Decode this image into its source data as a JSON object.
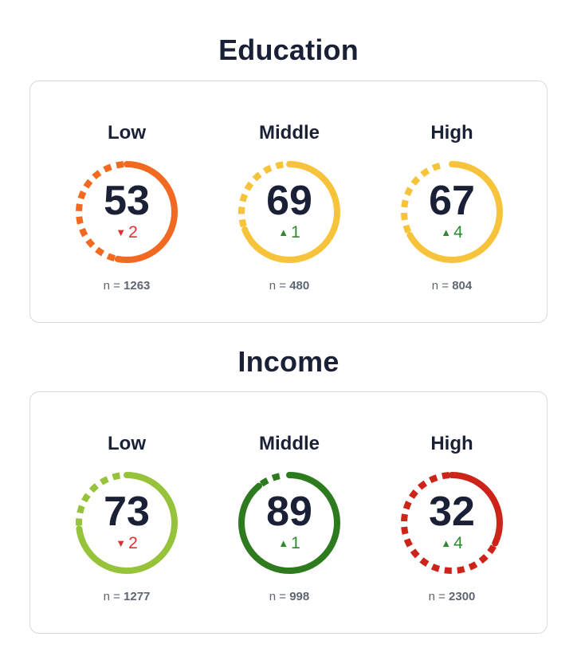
{
  "sections": [
    {
      "title": "Education",
      "gauges": [
        {
          "label": "Low",
          "value": 53,
          "delta": "2",
          "direction": "down",
          "n_prefix": "n = ",
          "n": "1263",
          "color": "#f26a21"
        },
        {
          "label": "Middle",
          "value": 69,
          "delta": "1",
          "direction": "up",
          "n_prefix": "n = ",
          "n": "480",
          "color": "#f7c33a"
        },
        {
          "label": "High",
          "value": 67,
          "delta": "4",
          "direction": "up",
          "n_prefix": "n = ",
          "n": "804",
          "color": "#f7c33a"
        }
      ]
    },
    {
      "title": "Income",
      "gauges": [
        {
          "label": "Low",
          "value": 73,
          "delta": "2",
          "direction": "down",
          "n_prefix": "n = ",
          "n": "1277",
          "color": "#97c33a"
        },
        {
          "label": "Middle",
          "value": 89,
          "delta": "1",
          "direction": "up",
          "n_prefix": "n = ",
          "n": "998",
          "color": "#2d7a1f"
        },
        {
          "label": "High",
          "value": 32,
          "delta": "4",
          "direction": "up",
          "n_prefix": "n = ",
          "n": "2300",
          "color": "#cc2418"
        }
      ]
    }
  ],
  "colors": {
    "down": "#e03131",
    "up": "#2f8a2f"
  }
}
